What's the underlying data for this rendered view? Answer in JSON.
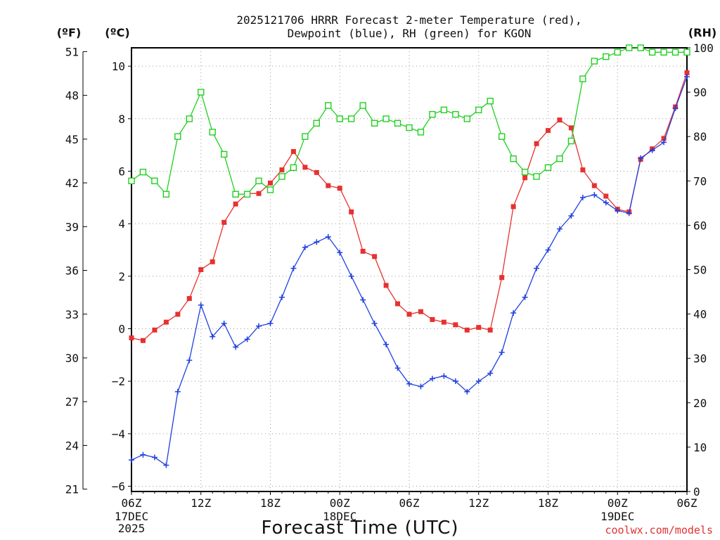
{
  "chart_data": {
    "type": "line",
    "title_lines": [
      "2025121706 HRRR Forecast 2-meter Temperature (red),",
      "Dewpoint (blue), RH (green) for KGON"
    ],
    "xlabel": "Forecast Time (UTC)",
    "credit": "coolwx.com/models",
    "units": {
      "f": "(ºF)",
      "c": "(ºC)",
      "rh": "(RH)"
    },
    "x_range_hours": [
      0,
      48
    ],
    "x_ticks": [
      {
        "hour": 0,
        "label": "06Z"
      },
      {
        "hour": 6,
        "label": "12Z"
      },
      {
        "hour": 12,
        "label": "18Z"
      },
      {
        "hour": 18,
        "label": "00Z"
      },
      {
        "hour": 24,
        "label": "06Z"
      },
      {
        "hour": 30,
        "label": "12Z"
      },
      {
        "hour": 36,
        "label": "18Z"
      },
      {
        "hour": 42,
        "label": "00Z"
      },
      {
        "hour": 48,
        "label": "06Z"
      }
    ],
    "date_labels": [
      {
        "hour": 0,
        "lines": [
          "17DEC",
          "2025"
        ]
      },
      {
        "hour": 18,
        "lines": [
          "18DEC"
        ]
      },
      {
        "hour": 42,
        "lines": [
          "19DEC"
        ]
      }
    ],
    "celsius_axis": {
      "range": [
        -6.2,
        10.7
      ],
      "ticks": [
        -6,
        -4,
        -2,
        0,
        2,
        4,
        6,
        8,
        10
      ]
    },
    "fahrenheit_axis": {
      "ticks": [
        21,
        24,
        27,
        30,
        33,
        36,
        39,
        42,
        45,
        48,
        51
      ]
    },
    "rh_axis": {
      "range": [
        0,
        100
      ],
      "ticks": [
        0,
        10,
        20,
        30,
        40,
        50,
        60,
        70,
        80,
        90,
        100
      ]
    },
    "series": [
      {
        "name": "Temperature",
        "color": "#e83030",
        "marker": "filled-square",
        "axis": "celsius",
        "values": [
          -0.35,
          -0.45,
          -0.05,
          0.25,
          0.55,
          1.15,
          2.25,
          2.55,
          4.05,
          4.75,
          5.15,
          5.15,
          5.55,
          6.05,
          6.75,
          6.15,
          5.95,
          5.45,
          5.35,
          4.45,
          2.95,
          2.75,
          1.65,
          0.95,
          0.55,
          0.65,
          0.35,
          0.25,
          0.15,
          -0.05,
          0.05,
          -0.05,
          1.95,
          4.65,
          5.75,
          7.05,
          7.55,
          7.95,
          7.65,
          6.05,
          5.45,
          5.05,
          4.55,
          4.45,
          6.45,
          6.85,
          7.25,
          8.45,
          9.75
        ]
      },
      {
        "name": "Dewpoint",
        "color": "#2040e0",
        "marker": "plus",
        "axis": "celsius",
        "values": [
          -5.0,
          -4.8,
          -4.9,
          -5.2,
          -2.4,
          -1.2,
          0.9,
          -0.3,
          0.2,
          -0.7,
          -0.4,
          0.1,
          0.2,
          1.2,
          2.3,
          3.1,
          3.3,
          3.5,
          2.9,
          2.0,
          1.1,
          0.2,
          -0.6,
          -1.5,
          -2.1,
          -2.2,
          -1.9,
          -1.8,
          -2.0,
          -2.4,
          -2.0,
          -1.7,
          -0.9,
          0.6,
          1.2,
          2.3,
          3.0,
          3.8,
          4.3,
          5.0,
          5.1,
          4.8,
          4.5,
          4.4,
          6.5,
          6.8,
          7.1,
          8.4,
          9.6
        ]
      },
      {
        "name": "Relative Humidity",
        "color": "#20d020",
        "marker": "open-square",
        "axis": "rh",
        "values": [
          70,
          72,
          70,
          67,
          80,
          84,
          90,
          81,
          76,
          67,
          67,
          70,
          68,
          71,
          73,
          80,
          83,
          87,
          84,
          84,
          87,
          83,
          84,
          83,
          82,
          81,
          85,
          86,
          85,
          84,
          86,
          88,
          80,
          75,
          72,
          71,
          73,
          75,
          79,
          93,
          97,
          98,
          99,
          100,
          100,
          99,
          99,
          99,
          99
        ]
      }
    ]
  }
}
